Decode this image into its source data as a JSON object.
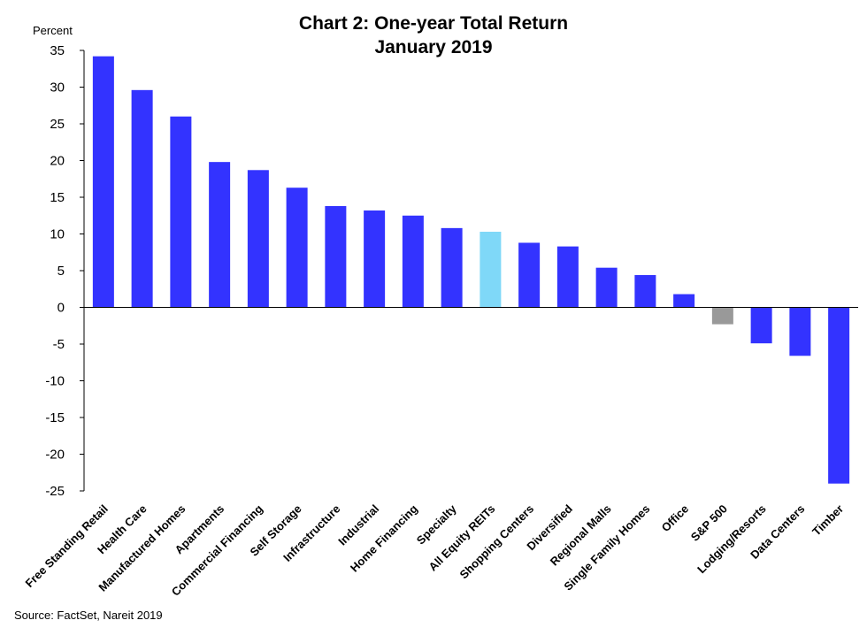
{
  "chart_data": {
    "type": "bar",
    "title": "Chart 2: One-year Total Return",
    "subtitle": "January 2019",
    "ylabel": "Percent",
    "xlabel": "",
    "ylim": [
      -25,
      35
    ],
    "yticks": [
      35,
      30,
      25,
      20,
      15,
      10,
      5,
      0,
      -5,
      -10,
      -15,
      -20,
      -25
    ],
    "grid": false,
    "legend": "none",
    "categories": [
      "Free Standing Retail",
      "Health Care",
      "Manufactured Homes",
      "Apartments",
      "Commercial Financing",
      "Self Storage",
      "Infrastructure",
      "Industrial",
      "Home Financing",
      "Specialty",
      "All Equity REITs",
      "Shopping Centers",
      "Diversified",
      "Regional Malls",
      "Single Family Homes",
      "Office",
      "S&P 500",
      "Lodging/Resorts",
      "Data Centers",
      "Timber"
    ],
    "values": [
      34.2,
      29.6,
      26.0,
      19.8,
      18.7,
      16.3,
      13.8,
      13.2,
      12.5,
      10.8,
      10.3,
      8.8,
      8.3,
      5.4,
      4.4,
      1.8,
      -2.3,
      -4.9,
      -6.6,
      -24.0
    ],
    "colors": {
      "default": "#3333ff",
      "highlight": "#7fd8f8",
      "benchmark": "#999999"
    },
    "color_keys": [
      "default",
      "default",
      "default",
      "default",
      "default",
      "default",
      "default",
      "default",
      "default",
      "default",
      "highlight",
      "default",
      "default",
      "default",
      "default",
      "default",
      "benchmark",
      "default",
      "default",
      "default"
    ]
  },
  "source": "Source: FactSet, Nareit 2019"
}
